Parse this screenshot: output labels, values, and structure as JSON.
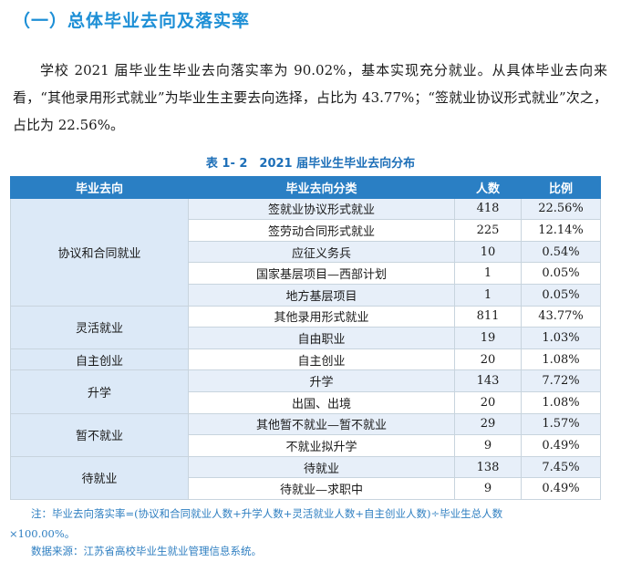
{
  "section_title": "（一）总体毕业去向及落实率",
  "paragraph": "学校 2021 届毕业生毕业去向落实率为 90.02%，基本实现充分就业。从具体毕业去向来看，“其他录用形式就业”为毕业生主要去向选择，占比为 43.77%；“签就业协议形式就业”次之，占比为 22.56%。",
  "table_caption": "表 1- 2　2021 届毕业生毕业去向分布",
  "table": {
    "headers": [
      "毕业去向",
      "毕业去向分类",
      "人数",
      "比例"
    ],
    "groups": [
      {
        "label": "协议和合同就业",
        "rows": [
          {
            "category": "签就业协议形式就业",
            "count": "418",
            "ratio": "22.56%"
          },
          {
            "category": "签劳动合同形式就业",
            "count": "225",
            "ratio": "12.14%"
          },
          {
            "category": "应征义务兵",
            "count": "10",
            "ratio": "0.54%"
          },
          {
            "category": "国家基层项目—西部计划",
            "count": "1",
            "ratio": "0.05%"
          },
          {
            "category": "地方基层项目",
            "count": "1",
            "ratio": "0.05%"
          }
        ]
      },
      {
        "label": "灵活就业",
        "rows": [
          {
            "category": "其他录用形式就业",
            "count": "811",
            "ratio": "43.77%"
          },
          {
            "category": "自由职业",
            "count": "19",
            "ratio": "1.03%"
          }
        ]
      },
      {
        "label": "自主创业",
        "rows": [
          {
            "category": "自主创业",
            "count": "20",
            "ratio": "1.08%"
          }
        ]
      },
      {
        "label": "升学",
        "rows": [
          {
            "category": "升学",
            "count": "143",
            "ratio": "7.72%"
          },
          {
            "category": "出国、出境",
            "count": "20",
            "ratio": "1.08%"
          }
        ]
      },
      {
        "label": "暂不就业",
        "rows": [
          {
            "category": "其他暂不就业—暂不就业",
            "count": "29",
            "ratio": "1.57%"
          },
          {
            "category": "不就业拟升学",
            "count": "9",
            "ratio": "0.49%"
          }
        ]
      },
      {
        "label": "待就业",
        "rows": [
          {
            "category": "待就业",
            "count": "138",
            "ratio": "7.45%"
          },
          {
            "category": "待就业—求职中",
            "count": "9",
            "ratio": "0.49%"
          }
        ]
      }
    ]
  },
  "note_line1": "注：毕业去向落实率=(协议和合同就业人数+升学人数+灵活就业人数+自主创业人数)÷毕业生总人数",
  "note_line2": "×100.00%。",
  "source": "数据来源：江苏省高校毕业生就业管理信息系统。"
}
